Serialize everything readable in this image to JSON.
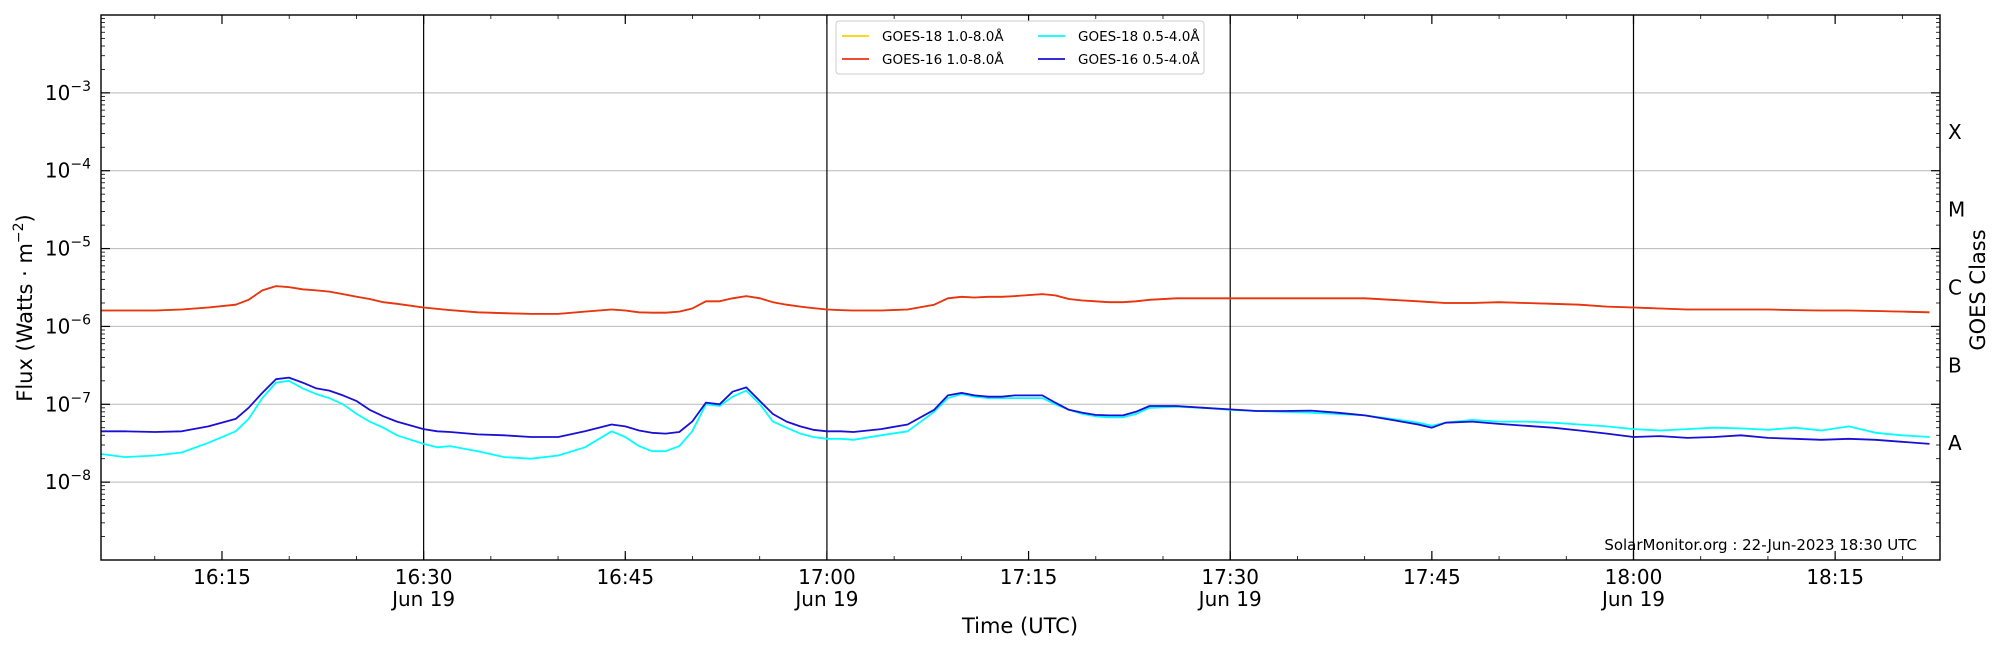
{
  "chart_data": {
    "type": "line",
    "xlabel": "Time (UTC)",
    "ylabel": "Flux (Watts · m",
    "ylabel_sup": "−2",
    "ylabel_close": ")",
    "right_label": "GOES Class",
    "credit": "SolarMonitor.org : 22-Jun-2023 18:30 UTC",
    "yscale": "log",
    "ylim": [
      1e-09,
      0.01
    ],
    "xlim": [
      16.1,
      18.38
    ],
    "y_ticks": [
      {
        "value": 1e-08,
        "base": "10",
        "exp": "−8"
      },
      {
        "value": 1e-07,
        "base": "10",
        "exp": "−7"
      },
      {
        "value": 1e-06,
        "base": "10",
        "exp": "−6"
      },
      {
        "value": 1e-05,
        "base": "10",
        "exp": "−5"
      },
      {
        "value": 0.0001,
        "base": "10",
        "exp": "−4"
      },
      {
        "value": 0.001,
        "base": "10",
        "exp": "−3"
      }
    ],
    "x_ticks": [
      {
        "value": 16.25,
        "label": "16:15",
        "sub": ""
      },
      {
        "value": 16.5,
        "label": "16:30",
        "sub": "Jun 19"
      },
      {
        "value": 16.75,
        "label": "16:45",
        "sub": ""
      },
      {
        "value": 17.0,
        "label": "17:00",
        "sub": "Jun 19"
      },
      {
        "value": 17.25,
        "label": "17:15",
        "sub": ""
      },
      {
        "value": 17.5,
        "label": "17:30",
        "sub": "Jun 19"
      },
      {
        "value": 17.75,
        "label": "17:45",
        "sub": ""
      },
      {
        "value": 18.0,
        "label": "18:00",
        "sub": "Jun 19"
      },
      {
        "value": 18.25,
        "label": "18:15",
        "sub": ""
      }
    ],
    "vertical_lines": [
      16.5,
      17.0,
      17.5,
      18.0
    ],
    "gridlines_y": [
      1e-08,
      1e-07,
      1e-06,
      1e-05,
      0.0001,
      0.001
    ],
    "goes_classes": [
      {
        "label": "X",
        "value": 0.000316
      },
      {
        "label": "M",
        "value": 3.16e-05
      },
      {
        "label": "C",
        "value": 3.16e-06
      },
      {
        "label": "B",
        "value": 3.16e-07
      },
      {
        "label": "A",
        "value": 3.16e-08
      }
    ],
    "legend_position": "top-center",
    "x_times": [
      16.1,
      16.13,
      16.167,
      16.2,
      16.233,
      16.267,
      16.283,
      16.3,
      16.317,
      16.333,
      16.35,
      16.367,
      16.383,
      16.4,
      16.417,
      16.433,
      16.45,
      16.467,
      16.5,
      16.517,
      16.533,
      16.567,
      16.6,
      16.633,
      16.667,
      16.7,
      16.733,
      16.75,
      16.767,
      16.783,
      16.8,
      16.817,
      16.833,
      16.85,
      16.867,
      16.883,
      16.9,
      16.917,
      16.933,
      16.95,
      16.967,
      16.983,
      17.0,
      17.017,
      17.033,
      17.067,
      17.1,
      17.133,
      17.15,
      17.167,
      17.183,
      17.2,
      17.217,
      17.233,
      17.267,
      17.283,
      17.3,
      17.317,
      17.333,
      17.35,
      17.367,
      17.383,
      17.4,
      17.433,
      17.467,
      17.5,
      17.533,
      17.567,
      17.6,
      17.633,
      17.667,
      17.7,
      17.733,
      17.75,
      17.767,
      17.8,
      17.833,
      17.867,
      17.9,
      17.933,
      17.967,
      18.0,
      18.033,
      18.067,
      18.1,
      18.133,
      18.167,
      18.2,
      18.233,
      18.267,
      18.3,
      18.333,
      18.367
    ],
    "series": [
      {
        "name": "GOES-18 1.0-8.0Å",
        "color": "#f2d500",
        "values": [
          1.6e-06,
          1.6e-06,
          1.6e-06,
          1.65e-06,
          1.75e-06,
          1.9e-06,
          2.2e-06,
          2.9e-06,
          3.3e-06,
          3.2e-06,
          3e-06,
          2.9e-06,
          2.8e-06,
          2.6e-06,
          2.4e-06,
          2.25e-06,
          2.05e-06,
          1.95e-06,
          1.75e-06,
          1.68e-06,
          1.62e-06,
          1.52e-06,
          1.48e-06,
          1.45e-06,
          1.45e-06,
          1.55e-06,
          1.65e-06,
          1.6e-06,
          1.52e-06,
          1.5e-06,
          1.5e-06,
          1.55e-06,
          1.7e-06,
          2.1e-06,
          2.1e-06,
          2.3e-06,
          2.45e-06,
          2.3e-06,
          2.05e-06,
          1.9e-06,
          1.8e-06,
          1.72e-06,
          1.65e-06,
          1.62e-06,
          1.6e-06,
          1.6e-06,
          1.65e-06,
          1.9e-06,
          2.3e-06,
          2.4e-06,
          2.35e-06,
          2.4e-06,
          2.4e-06,
          2.45e-06,
          2.6e-06,
          2.5e-06,
          2.25e-06,
          2.15e-06,
          2.1e-06,
          2.05e-06,
          2.05e-06,
          2.1e-06,
          2.2e-06,
          2.3e-06,
          2.3e-06,
          2.3e-06,
          2.3e-06,
          2.3e-06,
          2.3e-06,
          2.3e-06,
          2.3e-06,
          2.2e-06,
          2.1e-06,
          2.05e-06,
          2e-06,
          2e-06,
          2.05e-06,
          2e-06,
          1.95e-06,
          1.9e-06,
          1.8e-06,
          1.75e-06,
          1.7e-06,
          1.65e-06,
          1.65e-06,
          1.65e-06,
          1.65e-06,
          1.62e-06,
          1.6e-06,
          1.6e-06,
          1.58e-06,
          1.55e-06,
          1.52e-06
        ]
      },
      {
        "name": "GOES-16 1.0-8.0Å",
        "color": "#e8321a",
        "values": [
          1.6e-06,
          1.6e-06,
          1.6e-06,
          1.65e-06,
          1.75e-06,
          1.9e-06,
          2.2e-06,
          2.9e-06,
          3.3e-06,
          3.2e-06,
          3e-06,
          2.9e-06,
          2.8e-06,
          2.6e-06,
          2.4e-06,
          2.25e-06,
          2.05e-06,
          1.95e-06,
          1.75e-06,
          1.68e-06,
          1.62e-06,
          1.52e-06,
          1.48e-06,
          1.45e-06,
          1.45e-06,
          1.55e-06,
          1.65e-06,
          1.6e-06,
          1.52e-06,
          1.5e-06,
          1.5e-06,
          1.55e-06,
          1.7e-06,
          2.1e-06,
          2.1e-06,
          2.3e-06,
          2.45e-06,
          2.3e-06,
          2.05e-06,
          1.9e-06,
          1.8e-06,
          1.72e-06,
          1.65e-06,
          1.62e-06,
          1.6e-06,
          1.6e-06,
          1.65e-06,
          1.9e-06,
          2.3e-06,
          2.4e-06,
          2.35e-06,
          2.4e-06,
          2.4e-06,
          2.45e-06,
          2.6e-06,
          2.5e-06,
          2.25e-06,
          2.15e-06,
          2.1e-06,
          2.05e-06,
          2.05e-06,
          2.1e-06,
          2.2e-06,
          2.3e-06,
          2.3e-06,
          2.3e-06,
          2.3e-06,
          2.3e-06,
          2.3e-06,
          2.3e-06,
          2.3e-06,
          2.2e-06,
          2.1e-06,
          2.05e-06,
          2e-06,
          2e-06,
          2.05e-06,
          2e-06,
          1.95e-06,
          1.9e-06,
          1.8e-06,
          1.75e-06,
          1.7e-06,
          1.65e-06,
          1.65e-06,
          1.65e-06,
          1.65e-06,
          1.62e-06,
          1.6e-06,
          1.6e-06,
          1.58e-06,
          1.55e-06,
          1.52e-06
        ]
      },
      {
        "name": "GOES-18 0.5-4.0Å",
        "color": "#00ffff",
        "values": [
          2.3e-08,
          2.1e-08,
          2.2e-08,
          2.4e-08,
          3.2e-08,
          4.5e-08,
          6.5e-08,
          1.2e-07,
          1.9e-07,
          2e-07,
          1.6e-07,
          1.35e-07,
          1.2e-07,
          1e-07,
          7.5e-08,
          6e-08,
          5e-08,
          4e-08,
          3.1e-08,
          2.8e-08,
          2.9e-08,
          2.5e-08,
          2.1e-08,
          2e-08,
          2.2e-08,
          2.8e-08,
          4.5e-08,
          3.8e-08,
          2.9e-08,
          2.5e-08,
          2.5e-08,
          2.9e-08,
          4.5e-08,
          1e-07,
          9.5e-08,
          1.25e-07,
          1.5e-07,
          1e-07,
          6e-08,
          5e-08,
          4.2e-08,
          3.8e-08,
          3.6e-08,
          3.6e-08,
          3.5e-08,
          4e-08,
          4.5e-08,
          8e-08,
          1.2e-07,
          1.35e-07,
          1.25e-07,
          1.2e-07,
          1.2e-07,
          1.2e-07,
          1.2e-07,
          1e-07,
          8.5e-08,
          7.5e-08,
          7e-08,
          6.8e-08,
          6.8e-08,
          7.5e-08,
          9e-08,
          9.3e-08,
          9e-08,
          8.5e-08,
          8.2e-08,
          8e-08,
          7.8e-08,
          7.5e-08,
          7.2e-08,
          6.5e-08,
          5.8e-08,
          5.3e-08,
          5.8e-08,
          6.3e-08,
          6e-08,
          6e-08,
          5.8e-08,
          5.5e-08,
          5.2e-08,
          4.8e-08,
          4.6e-08,
          4.8e-08,
          5e-08,
          4.9e-08,
          4.7e-08,
          5e-08,
          4.6e-08,
          5.2e-08,
          4.3e-08,
          4e-08,
          3.8e-08
        ]
      },
      {
        "name": "GOES-16 0.5-4.0Å",
        "color": "#1a0fd4",
        "values": [
          4.5e-08,
          4.5e-08,
          4.4e-08,
          4.5e-08,
          5.2e-08,
          6.5e-08,
          9e-08,
          1.4e-07,
          2.1e-07,
          2.2e-07,
          1.9e-07,
          1.6e-07,
          1.5e-07,
          1.3e-07,
          1.1e-07,
          8.5e-08,
          7e-08,
          6e-08,
          4.8e-08,
          4.5e-08,
          4.4e-08,
          4.1e-08,
          4e-08,
          3.8e-08,
          3.8e-08,
          4.5e-08,
          5.5e-08,
          5.2e-08,
          4.6e-08,
          4.3e-08,
          4.2e-08,
          4.4e-08,
          6e-08,
          1.05e-07,
          1e-07,
          1.45e-07,
          1.65e-07,
          1.1e-07,
          7.5e-08,
          6e-08,
          5.2e-08,
          4.7e-08,
          4.5e-08,
          4.5e-08,
          4.4e-08,
          4.8e-08,
          5.5e-08,
          8.5e-08,
          1.3e-07,
          1.4e-07,
          1.3e-07,
          1.25e-07,
          1.25e-07,
          1.3e-07,
          1.3e-07,
          1.05e-07,
          8.5e-08,
          7.8e-08,
          7.3e-08,
          7.2e-08,
          7.2e-08,
          8e-08,
          9.5e-08,
          9.5e-08,
          9e-08,
          8.6e-08,
          8.2e-08,
          8.2e-08,
          8.3e-08,
          7.8e-08,
          7.2e-08,
          6.3e-08,
          5.5e-08,
          5e-08,
          5.8e-08,
          6e-08,
          5.6e-08,
          5.3e-08,
          5e-08,
          4.6e-08,
          4.2e-08,
          3.8e-08,
          3.9e-08,
          3.7e-08,
          3.8e-08,
          4e-08,
          3.7e-08,
          3.6e-08,
          3.5e-08,
          3.6e-08,
          3.5e-08,
          3.3e-08,
          3.1e-08
        ]
      }
    ]
  }
}
